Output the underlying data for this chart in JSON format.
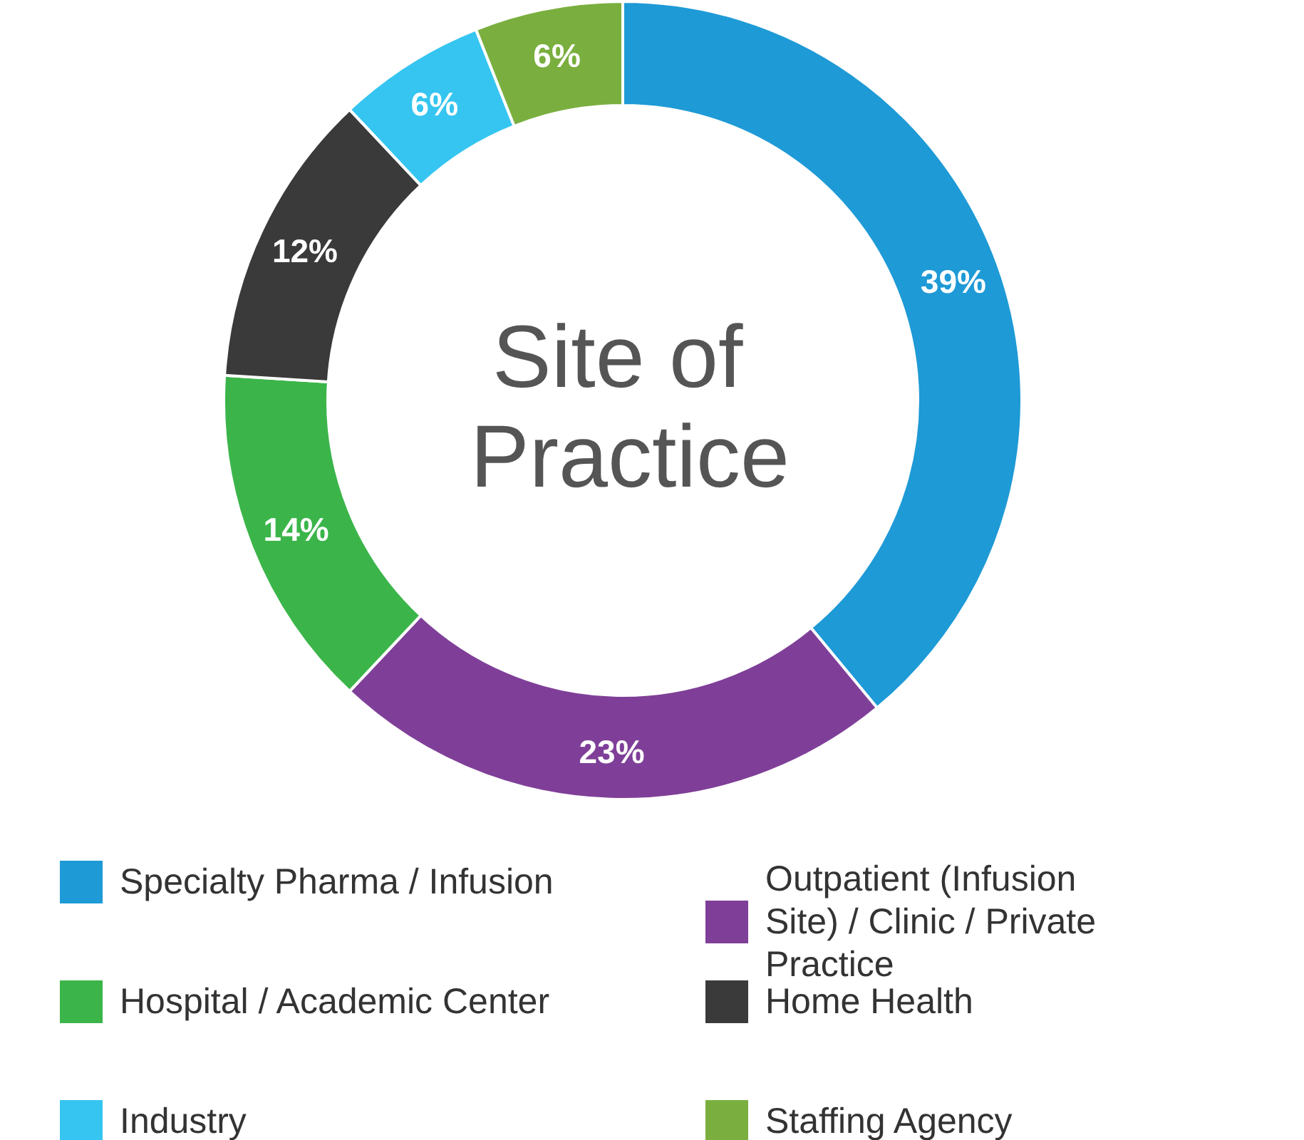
{
  "chart_data": {
    "type": "donut",
    "title": "Site of Practice",
    "categories": [
      "Specialty Pharma / Infusion",
      "Outpatient (Infusion Site) / Clinic / Private Practice",
      "Hospital / Academic Center",
      "Home Health",
      "Industry",
      "Staffing Agency"
    ],
    "values": [
      39,
      23,
      14,
      12,
      6,
      6
    ],
    "colors": [
      "#1e9ad6",
      "#7f3f98",
      "#3bb54a",
      "#3a3a3a",
      "#35c5f0",
      "#7aaf3f"
    ],
    "value_labels": [
      "39%",
      "23%",
      "14%",
      "12%",
      "6%",
      "6%"
    ],
    "legend": "bottom"
  }
}
